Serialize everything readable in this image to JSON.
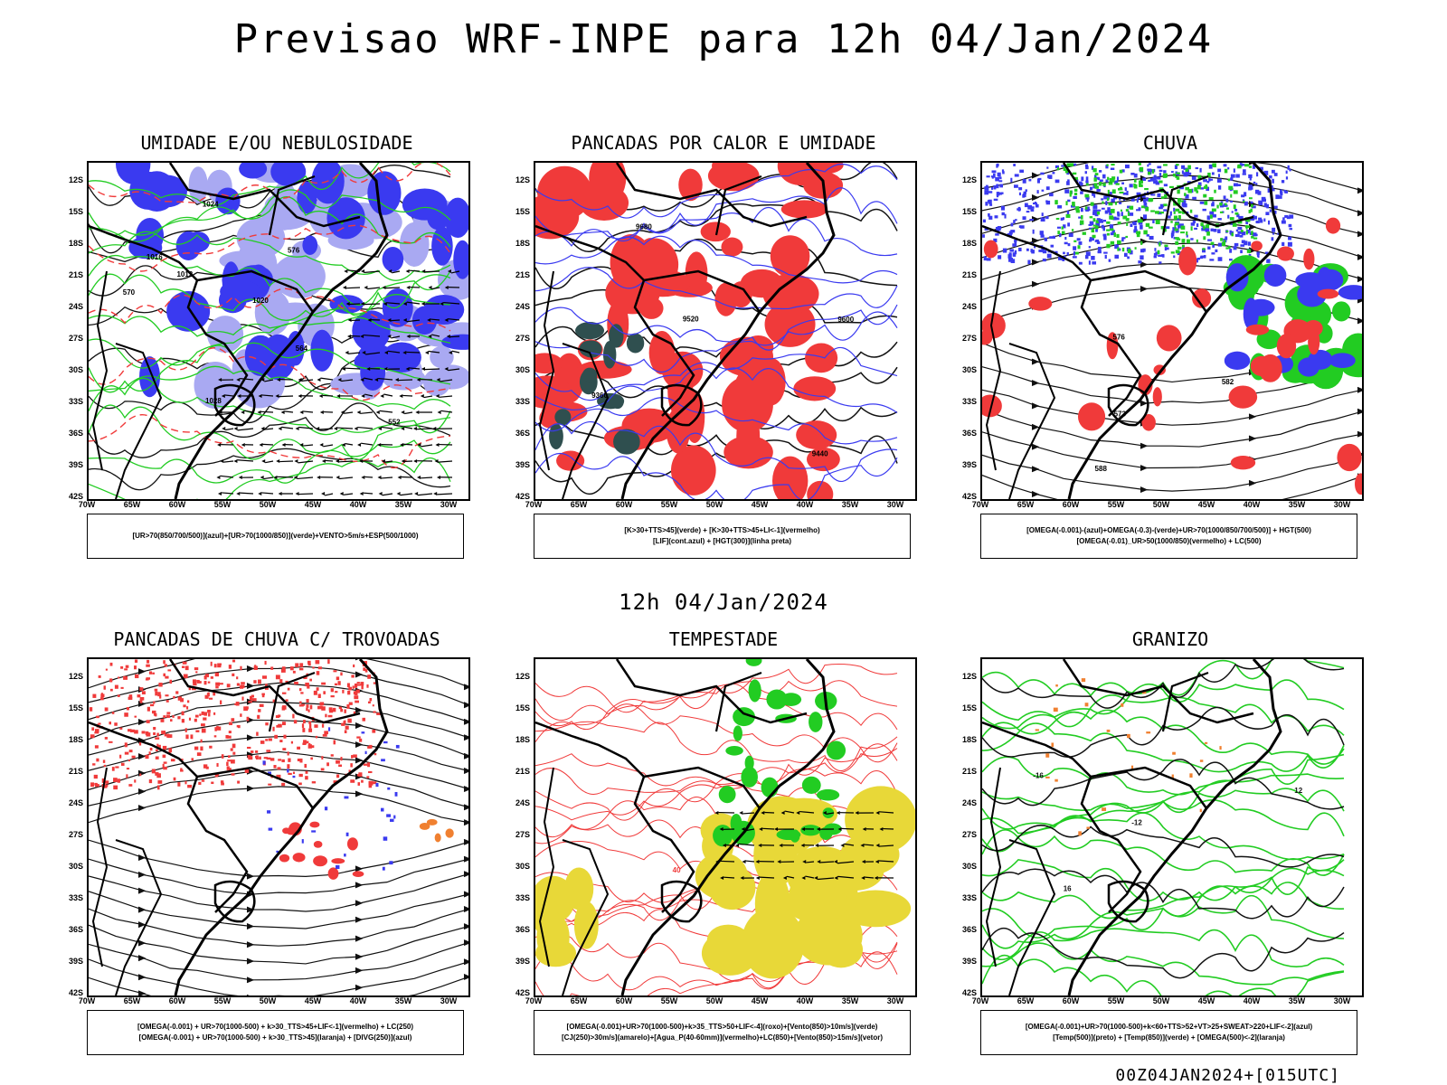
{
  "title": "Previsao WRF-INPE  para 12h 04/Jan/2024",
  "mid_title": "12h 04/Jan/2024",
  "footer": "00Z04JAN2024+[015UTC]",
  "axes": {
    "lat_labels": [
      "12S",
      "15S",
      "18S",
      "21S",
      "24S",
      "27S",
      "30S",
      "33S",
      "36S",
      "39S",
      "42S"
    ],
    "lon_labels": [
      "70W",
      "65W",
      "60W",
      "55W",
      "50W",
      "45W",
      "40W",
      "35W",
      "30W"
    ]
  },
  "colors": {
    "humidity_blue": "#3a3af0",
    "humidity_light": "#a9a9f2",
    "green": "#22cc22",
    "red": "#f03a3a",
    "dark_teal": "#2f4f4f",
    "yellow": "#e8d838",
    "orange": "#f08030"
  },
  "panels": [
    {
      "title": "UMIDADE E/OU NEBULOSIDADE",
      "legend": [
        "[UR>70(850/700/500)](azul)+[UR>70(1000/850)](verde)+VENTO>5m/s+ESP(500/1000)"
      ],
      "contour_labels": [
        "1012",
        "1016",
        "1020",
        "1024",
        "1028",
        "576",
        "570",
        "564",
        "552"
      ]
    },
    {
      "title": "PANCADAS POR CALOR E UMIDADE",
      "legend": [
        "[K>30+TTS>45](verde) + [K>30+TTS>45+LI<-1](vermelho)",
        "[LIF](cont.azul) + [HGT(300)](linha preta)"
      ],
      "contour_labels": [
        "9680",
        "9600",
        "9520",
        "9440",
        "9360"
      ]
    },
    {
      "title": "CHUVA",
      "legend": [
        "[OMEGA(-0.001)-(azul)+OMEGA(-0.3)-(verde)+UR>70(1000/850/700/500)] + HGT(500)",
        "[OMEGA(-0.01)_UR>50(1000/850)(vermelho) + LC(500)"
      ],
      "contour_labels": [
        "588",
        "582",
        "576",
        "573"
      ]
    },
    {
      "title": "PANCADAS DE CHUVA C/ TROVOADAS",
      "legend": [
        "[OMEGA(-0.001) + UR>70(1000-500) + k>30_TTS>45+LIF<-1](vermelho) + LC(250)",
        "[OMEGA(-0.001) + UR>70(1000-500) + k>30_TTS>45](laranja) + [DIVG(250)](azul)"
      ],
      "contour_labels": []
    },
    {
      "title": "TEMPESTADE",
      "legend": [
        "[OMEGA(-0.001)+UR>70(1000-500)+k>35_TTS>50+LIF<-4](roxo)+[Vento(850)>10m/s](verde)",
        "[CJ(250)>30m/s](amarelo)+[Agua_P(40-60mm)](vermelho)+LC(850)+[Vento(850)>15m/s](vetor)"
      ],
      "contour_labels": [
        "40"
      ]
    },
    {
      "title": "GRANIZO",
      "legend": [
        "[OMEGA(-0.001)+UR>70(1000-500)+k<60+TTS>52+VT>25+SWEAT>220+LIF<-2](azul)",
        "[Temp(500)](preto) + [Temp(850)](verde) + [OMEGA(500)<-2](laranja)"
      ],
      "contour_labels": [
        "-12",
        "-16",
        "16",
        "12"
      ]
    }
  ]
}
